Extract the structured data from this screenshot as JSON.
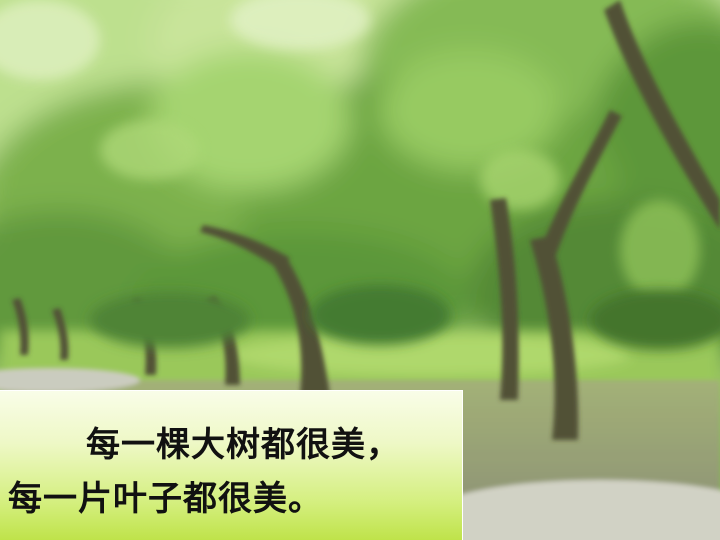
{
  "photo": {
    "subject": "park-trees-photo",
    "colors": {
      "foliage_light": "#a9d86a",
      "foliage_mid": "#5f9a2e",
      "foliage_dark": "#2f5e18",
      "trunk": "#3e3a26",
      "ground": "#8a8a70",
      "grass": "#8fc24a",
      "path": "#c9c8c0"
    }
  },
  "caption": {
    "line1": "每一棵大树都很美，",
    "line2": "每一片叶子都很美。",
    "gradient_top": "#f9fde8",
    "gradient_bottom": "#bfe34a"
  }
}
